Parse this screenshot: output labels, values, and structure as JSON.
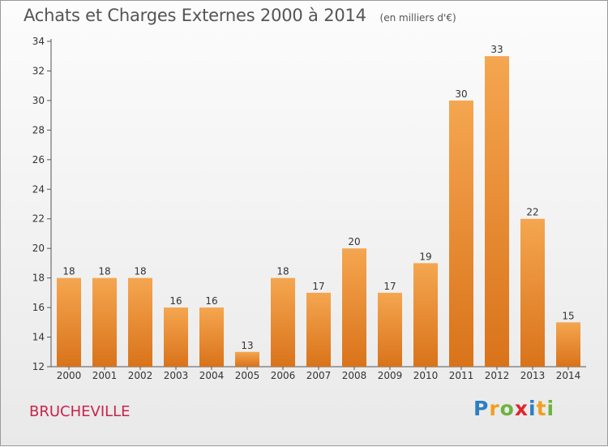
{
  "title": "Achats et Charges Externes 2000 à 2014",
  "subtitle": "(en milliers d'€)",
  "place_label": "BRUCHEVILLE",
  "logo": {
    "text": "Proxiti",
    "letters": [
      {
        "ch": "P",
        "color": "#2c7fc0"
      },
      {
        "ch": "r",
        "color": "#f0a020"
      },
      {
        "ch": "o",
        "color": "#6db33f"
      },
      {
        "ch": "x",
        "color": "#e0262a"
      },
      {
        "ch": "i",
        "color": "#2c7fc0"
      },
      {
        "ch": "t",
        "color": "#f0a020"
      },
      {
        "ch": "i",
        "color": "#6db33f"
      }
    ]
  },
  "colors": {
    "bar_top": "#f5a650",
    "bar_bottom": "#d9731a",
    "axis": "#555555",
    "grid": "#cccccc",
    "text": "#333333"
  },
  "chart_data": {
    "type": "bar",
    "title": "Achats et Charges Externes 2000 à 2014",
    "subtitle": "(en milliers d'€)",
    "categories": [
      "2000",
      "2001",
      "2002",
      "2003",
      "2004",
      "2005",
      "2006",
      "2007",
      "2008",
      "2009",
      "2010",
      "2011",
      "2012",
      "2013",
      "2014"
    ],
    "values": [
      18,
      18,
      18,
      16,
      16,
      13,
      18,
      17,
      20,
      17,
      19,
      30,
      33,
      22,
      15
    ],
    "ylim": [
      12,
      34
    ],
    "yticks": [
      12,
      14,
      16,
      18,
      20,
      22,
      24,
      26,
      28,
      30,
      32,
      34
    ],
    "grid": false,
    "data_labels": true
  }
}
